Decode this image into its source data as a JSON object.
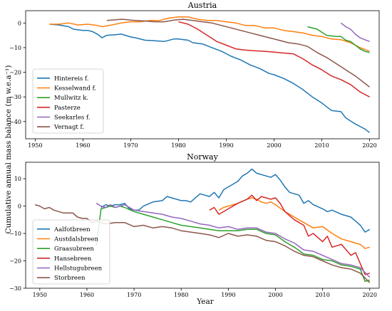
{
  "figure": {
    "ylabel": "Cumulative annual mass balance (m w.e.a⁻¹)",
    "xlabel": "Year"
  },
  "chart_data": [
    {
      "type": "line",
      "title": "Austria",
      "xlabel": "",
      "ylabel": "",
      "xlim": [
        1948,
        2022
      ],
      "ylim": [
        -47,
        5
      ],
      "xticks": [
        1950,
        1960,
        1970,
        1980,
        1990,
        2000,
        2010,
        2020
      ],
      "yticks": [
        0,
        -10,
        -20,
        -30,
        -40
      ],
      "legend_position": "lower-left",
      "grid": false,
      "series": [
        {
          "name": "Hintereis f.",
          "color": "#1f77b4",
          "x": [
            1953,
            1955,
            1957,
            1958,
            1960,
            1961,
            1962,
            1963,
            1964,
            1965,
            1967,
            1968,
            1970,
            1971,
            1973,
            1975,
            1977,
            1979,
            1980,
            1982,
            1983,
            1985,
            1987,
            1989,
            1991,
            1993,
            1995,
            1997,
            1999,
            2000,
            2002,
            2004,
            2006,
            2008,
            2010,
            2012,
            2014,
            2015,
            2017,
            2019,
            2020
          ],
          "y": [
            -0.5,
            -0.8,
            -1.5,
            -2.5,
            -3,
            -3,
            -3.5,
            -4.5,
            -6,
            -5,
            -4.7,
            -4.5,
            -5.7,
            -6,
            -7,
            -7.2,
            -7.5,
            -6.5,
            -6.5,
            -7,
            -8,
            -8.5,
            -10,
            -11.5,
            -13.5,
            -15,
            -17,
            -18.5,
            -20.5,
            -21,
            -22.5,
            -24.5,
            -27,
            -30,
            -32.5,
            -35.5,
            -36,
            -38.5,
            -41,
            -43,
            -44.5
          ]
        },
        {
          "name": "Kesselwand f.",
          "color": "#ff7f0e",
          "x": [
            1953,
            1955,
            1957,
            1959,
            1961,
            1963,
            1964,
            1966,
            1968,
            1970,
            1972,
            1974,
            1976,
            1978,
            1980,
            1982,
            1984,
            1986,
            1988,
            1990,
            1992,
            1994,
            1996,
            1998,
            2000,
            2002,
            2004,
            2006,
            2008,
            2010,
            2012,
            2014,
            2016,
            2018,
            2020
          ],
          "y": [
            -0.5,
            -0.5,
            0,
            -0.8,
            -0.5,
            -1,
            -1.5,
            -0.8,
            0,
            0.5,
            0.5,
            1,
            1,
            2,
            2.5,
            2.5,
            1.5,
            1,
            1,
            0.5,
            0,
            -1,
            -1,
            -2,
            -2,
            -3,
            -3.5,
            -4,
            -5,
            -5.5,
            -6.5,
            -6.8,
            -8,
            -10,
            -11.5
          ]
        },
        {
          "name": "Mullwitz k.",
          "color": "#2ca02c",
          "x": [
            2007,
            2009,
            2011,
            2013,
            2014,
            2015,
            2016,
            2017,
            2018,
            2019,
            2020
          ],
          "y": [
            -1.5,
            -2.5,
            -5,
            -5.5,
            -5.5,
            -7,
            -7.5,
            -9,
            -10.5,
            -11.5,
            -12
          ]
        },
        {
          "name": "Pasterze",
          "color": "#d62728",
          "x": [
            1980,
            1982,
            1984,
            1986,
            1988,
            1990,
            1992,
            1994,
            1996,
            1998,
            2000,
            2002,
            2004,
            2006,
            2008,
            2010,
            2012,
            2014,
            2016,
            2018,
            2020
          ],
          "y": [
            0.5,
            -0.5,
            -2.5,
            -5,
            -7.5,
            -9,
            -10.5,
            -11,
            -11.3,
            -11.5,
            -11.8,
            -12.2,
            -12.5,
            -14.5,
            -17,
            -19,
            -21.5,
            -23,
            -25,
            -28,
            -30
          ]
        },
        {
          "name": "Seekarles f.",
          "color": "#9467bd",
          "x": [
            2014,
            2015,
            2016,
            2017,
            2018,
            2019,
            2020
          ],
          "y": [
            0,
            -1.5,
            -2.5,
            -4.5,
            -6,
            -6.8,
            -7.5
          ]
        },
        {
          "name": "Vernagt f.",
          "color": "#8c564b",
          "x": [
            1965,
            1966,
            1967,
            1968,
            1969,
            1970,
            1971,
            1973,
            1975,
            1977,
            1979,
            1981,
            1983,
            1985,
            1987,
            1989,
            1991,
            1993,
            1995,
            1997,
            1999,
            2001,
            2003,
            2005,
            2007,
            2009,
            2011,
            2013,
            2015,
            2017,
            2019,
            2020
          ],
          "y": [
            1,
            1.2,
            1.3,
            1.5,
            1.4,
            1.2,
            1,
            0.8,
            0.5,
            0.5,
            1.2,
            1.5,
            1,
            0.5,
            0,
            -1,
            -2,
            -3,
            -4,
            -5,
            -6,
            -7,
            -8,
            -8.5,
            -9.5,
            -12,
            -14,
            -16.5,
            -19,
            -21.5,
            -24.5,
            -26
          ]
        }
      ]
    },
    {
      "type": "line",
      "title": "Norway",
      "xlabel": "",
      "ylabel": "",
      "xlim": [
        1947,
        2022
      ],
      "ylim": [
        -30,
        16
      ],
      "xticks": [
        1950,
        1960,
        1970,
        1980,
        1990,
        2000,
        2010,
        2020
      ],
      "yticks": [
        10,
        0,
        -10,
        -20,
        -30
      ],
      "legend_position": "lower-left",
      "grid": false,
      "series": [
        {
          "name": "Aalfotbreen",
          "color": "#1f77b4",
          "x": [
            1963,
            1964,
            1965,
            1966,
            1967,
            1968,
            1969,
            1970,
            1971,
            1972,
            1974,
            1976,
            1977,
            1978,
            1980,
            1981,
            1982,
            1984,
            1985,
            1986,
            1987,
            1988,
            1989,
            1990,
            1992,
            1993,
            1994,
            1995,
            1996,
            1997,
            1998,
            1999,
            2000,
            2001,
            2002,
            2003,
            2004,
            2005,
            2006,
            2007,
            2008,
            2010,
            2011,
            2012,
            2014,
            2016,
            2017,
            2018,
            2019,
            2020
          ],
          "y": [
            -0.5,
            0.5,
            0,
            0.5,
            0.5,
            1,
            -1,
            -1.5,
            -1.5,
            0,
            1.5,
            2,
            3.5,
            3,
            2,
            2,
            1.5,
            4.5,
            4,
            3.5,
            5,
            3,
            6,
            7,
            9,
            11,
            12,
            13.5,
            12,
            11.5,
            11,
            10.5,
            11.5,
            9.5,
            7,
            5,
            4.5,
            4,
            1,
            2,
            0.5,
            -1,
            -2,
            -1.5,
            -3,
            -4,
            -5.5,
            -7,
            -9.5,
            -8.5
          ]
        },
        {
          "name": "Austdalsbreen",
          "color": "#ff7f0e",
          "x": [
            1988,
            1989,
            1990,
            1992,
            1994,
            1995,
            1996,
            1997,
            1998,
            1999,
            2000,
            2002,
            2004,
            2006,
            2008,
            2010,
            2012,
            2014,
            2016,
            2018,
            2019,
            2020
          ],
          "y": [
            -1.5,
            -0.5,
            0,
            1,
            2.5,
            3,
            2.5,
            1.5,
            1,
            1.5,
            0.5,
            -2,
            -4,
            -6,
            -8,
            -7.5,
            -10,
            -12,
            -13,
            -14,
            -15.5,
            -15
          ]
        },
        {
          "name": "Graasubreen",
          "color": "#2ca02c",
          "x": [
            1962,
            1963,
            1964,
            1965,
            1966,
            1967,
            1968,
            1970,
            1972,
            1974,
            1976,
            1978,
            1980,
            1982,
            1984,
            1986,
            1988,
            1990,
            1992,
            1994,
            1996,
            1998,
            2000,
            2002,
            2004,
            2006,
            2008,
            2010,
            2012,
            2014,
            2016,
            2018,
            2019,
            2020
          ],
          "y": [
            -14.5,
            -1,
            -0.5,
            0,
            -0.5,
            0,
            -0.5,
            -2,
            -3,
            -4,
            -5,
            -6,
            -7,
            -7.5,
            -8,
            -8.5,
            -9,
            -9,
            -9,
            -8.5,
            -8.5,
            -10,
            -10.5,
            -13,
            -15,
            -17.5,
            -18,
            -19.5,
            -20,
            -21.5,
            -22,
            -23,
            -27.5,
            -27
          ]
        },
        {
          "name": "Hansebreen",
          "color": "#d62728",
          "x": [
            1986,
            1987,
            1988,
            1990,
            1992,
            1994,
            1995,
            1996,
            1997,
            1998,
            1999,
            2000,
            2001,
            2002,
            2004,
            2006,
            2007,
            2008,
            2010,
            2011,
            2012,
            2014,
            2016,
            2017,
            2018,
            2019,
            2020
          ],
          "y": [
            -1.5,
            -0.5,
            -3,
            -1,
            1,
            2.5,
            4,
            2,
            3.5,
            3,
            2.5,
            3,
            1,
            -2,
            -5,
            -7,
            -11,
            -10,
            -13,
            -11,
            -15,
            -14,
            -18,
            -17,
            -21,
            -25,
            -24.5
          ]
        },
        {
          "name": "Hellstugubreen",
          "color": "#9467bd",
          "x": [
            1962,
            1963,
            1964,
            1965,
            1966,
            1967,
            1968,
            1970,
            1972,
            1974,
            1976,
            1978,
            1980,
            1982,
            1984,
            1986,
            1988,
            1990,
            1992,
            1994,
            1996,
            1998,
            2000,
            2002,
            2004,
            2006,
            2008,
            2010,
            2012,
            2014,
            2016,
            2018,
            2020
          ],
          "y": [
            1,
            0,
            -0.5,
            0.5,
            -0.5,
            0,
            0.5,
            -1.5,
            -2,
            -2.5,
            -3,
            -4,
            -4.5,
            -5.5,
            -6.5,
            -7,
            -8,
            -7.5,
            -8.5,
            -8,
            -8,
            -9.5,
            -10,
            -12,
            -13.5,
            -16,
            -16.5,
            -18,
            -19.5,
            -21,
            -21.5,
            -22.5,
            -26
          ]
        },
        {
          "name": "Storbreen",
          "color": "#8c564b",
          "x": [
            1949,
            1950,
            1951,
            1952,
            1953,
            1955,
            1957,
            1958,
            1959,
            1960,
            1961,
            1962,
            1964,
            1966,
            1968,
            1970,
            1972,
            1974,
            1976,
            1978,
            1980,
            1982,
            1984,
            1986,
            1988,
            1990,
            1992,
            1994,
            1996,
            1998,
            2000,
            2002,
            2004,
            2006,
            2008,
            2010,
            2012,
            2014,
            2016,
            2018,
            2020
          ],
          "y": [
            0.5,
            0,
            -1,
            -0.5,
            -1.5,
            -2.5,
            -2.5,
            -4,
            -4.5,
            -4.5,
            -6,
            -5.5,
            -6.5,
            -6,
            -6,
            -7.5,
            -7,
            -8,
            -7.5,
            -8,
            -9,
            -9.5,
            -10,
            -10.5,
            -11.5,
            -10,
            -11,
            -10.5,
            -11,
            -12.5,
            -13,
            -14.5,
            -16.5,
            -18,
            -18.5,
            -20,
            -21.5,
            -22.5,
            -23,
            -24.5,
            -28
          ]
        }
      ]
    }
  ]
}
